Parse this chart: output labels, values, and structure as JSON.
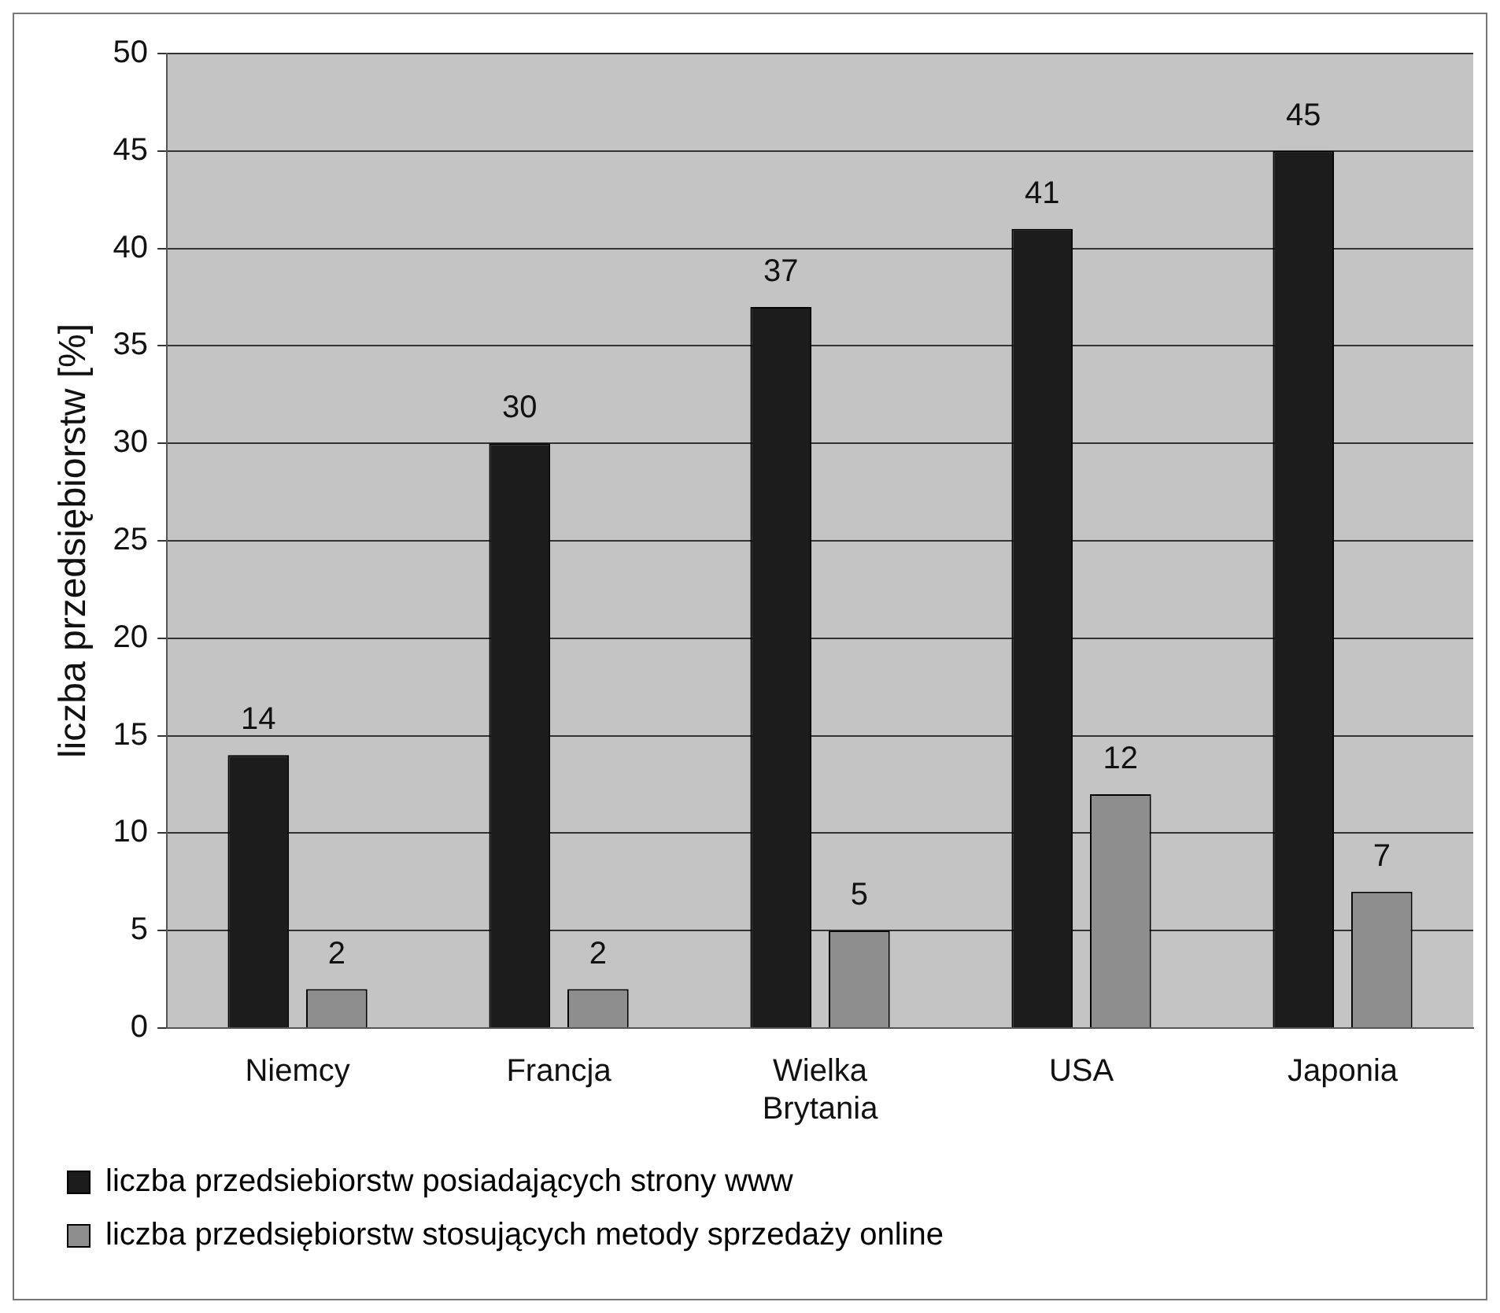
{
  "chart_data": {
    "type": "bar",
    "ylabel": "liczba przedsiębiorstw [%]",
    "categories": [
      "Niemcy",
      "Francja",
      "Wielka Brytania",
      "USA",
      "Japonia"
    ],
    "series": [
      {
        "name": "liczba przedsiebiorstw posiadających strony www",
        "color": "#1c1c1c",
        "values": [
          14,
          30,
          37,
          41,
          45
        ]
      },
      {
        "name": "liczba przedsiębiorstw stosujących metody sprzedaży online",
        "color": "#8e8e8e",
        "values": [
          2,
          2,
          5,
          12,
          7
        ]
      }
    ],
    "ylim": [
      0,
      50
    ],
    "yticks": [
      0,
      5,
      10,
      15,
      20,
      25,
      30,
      35,
      40,
      45,
      50
    ],
    "grid": "y",
    "legend": "bottom",
    "data_labels": true
  }
}
